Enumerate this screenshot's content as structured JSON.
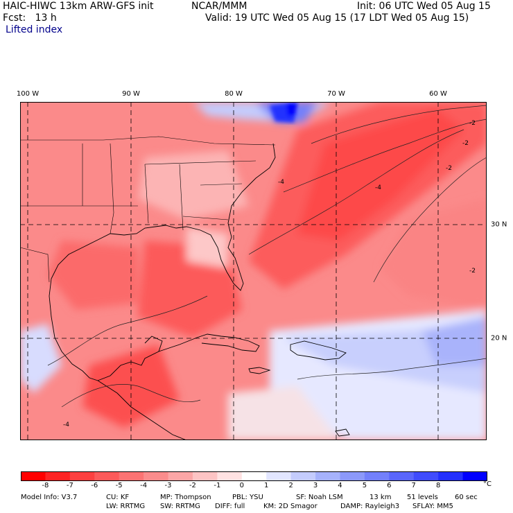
{
  "header": {
    "model": "HAIC-HIWC 13km ARW-GFS init",
    "org": "NCAR/MMM",
    "init": "Init: 06 UTC Wed 05 Aug 15",
    "fcst": "Fcst:   13 h",
    "valid": "Valid: 19 UTC Wed 05 Aug 15 (17 LDT Wed 05 Aug 15)",
    "field": "Lifted index"
  },
  "axes": {
    "lon_labels": [
      "100 W",
      "90 W",
      "80 W",
      "70 W",
      "60 W"
    ],
    "lat_labels": [
      "30 N",
      "20 N"
    ]
  },
  "colorbar": {
    "labels": [
      "-8",
      "-7",
      "-6",
      "-5",
      "-4",
      "-3",
      "-2",
      "-1",
      "0",
      "1",
      "2",
      "3",
      "4",
      "5",
      "6",
      "7",
      "8"
    ],
    "unit": "°C",
    "colors": [
      "#ff0000",
      "#fe2323",
      "#fd4040",
      "#fc5a5a",
      "#fb7373",
      "#fa8c8c",
      "#fba6a6",
      "#fdc4c4",
      "#ffe2e2",
      "#ffffff",
      "#e2e6ff",
      "#c4ccfd",
      "#a6b2fb",
      "#8c99fa",
      "#7380fb",
      "#5a66fc",
      "#404cfd",
      "#2330fe",
      "#0000ff"
    ]
  },
  "contour_labels": [
    "-4",
    "-2",
    "-2",
    "-2",
    "-4",
    "-4",
    "-2"
  ],
  "footer": {
    "line1": [
      "Model Info: V3.7",
      "CU: KF",
      "MP: Thompson",
      "PBL: YSU",
      "SF: Noah LSM",
      "13 km",
      "51 levels",
      "60 sec"
    ],
    "line2": [
      "LW: RRTMG",
      "SW: RRTMG",
      "DIFF: full",
      "KM: 2D Smagor",
      "DAMP: Rayleigh3",
      "SFLAY: MM5"
    ]
  }
}
